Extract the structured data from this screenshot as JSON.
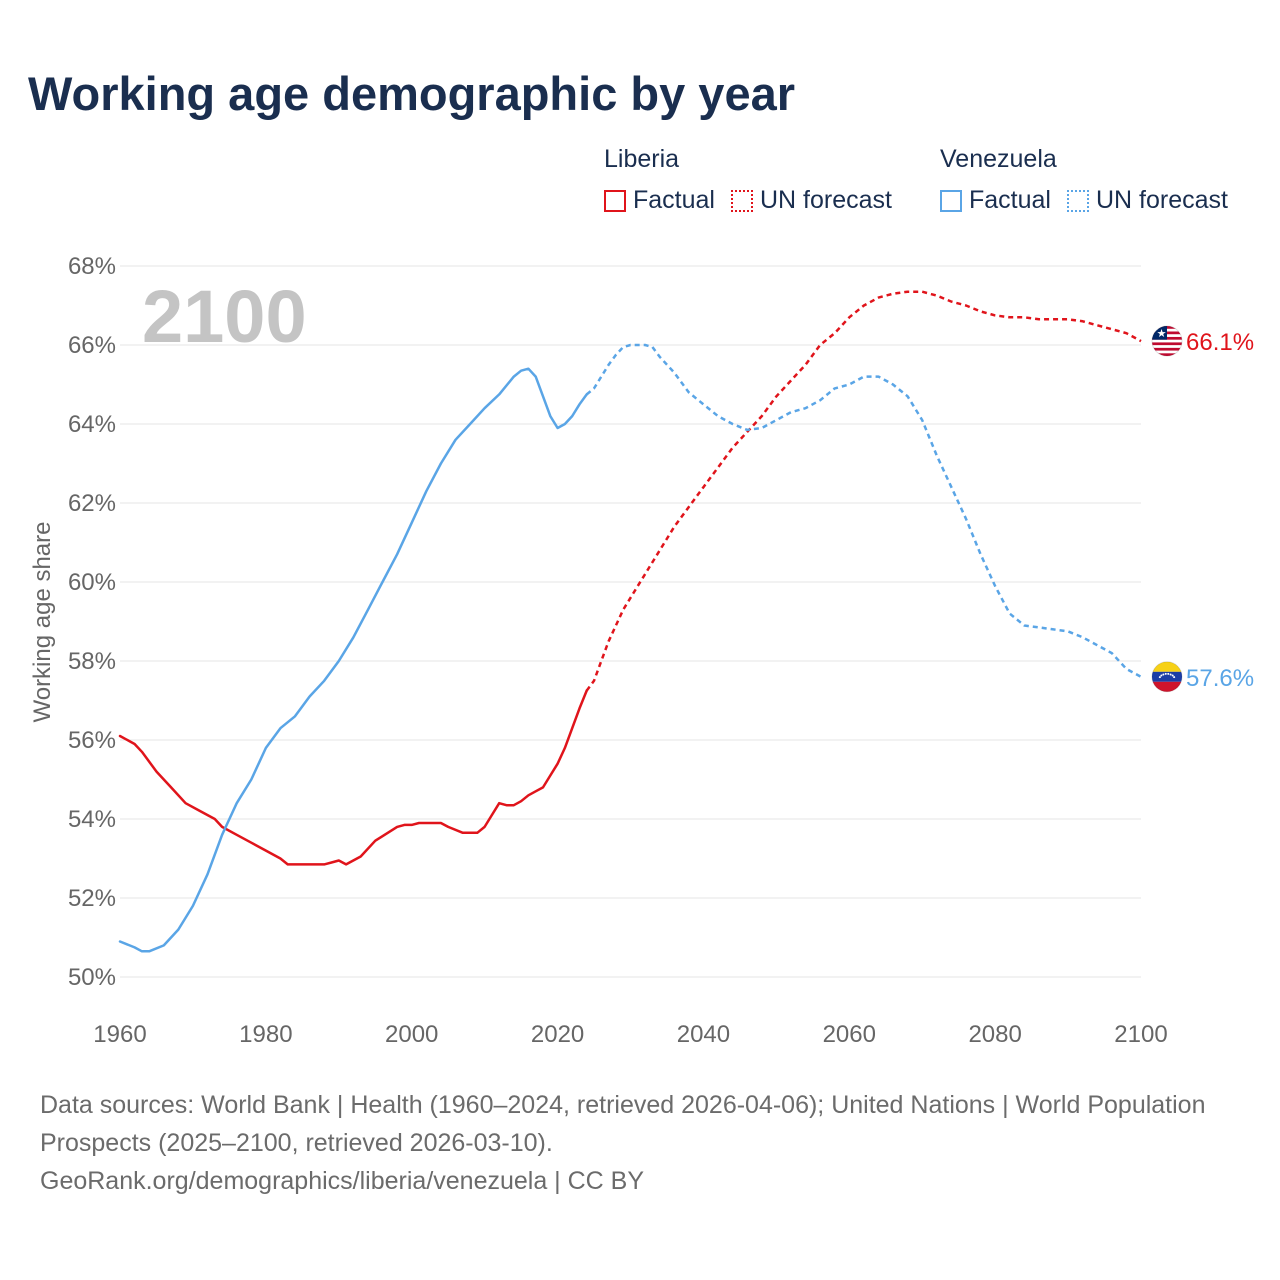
{
  "title": "Working age demographic by year",
  "legend": {
    "groups": [
      {
        "name": "Liberia",
        "factual": "Factual",
        "forecast": "UN forecast"
      },
      {
        "name": "Venezuela",
        "factual": "Factual",
        "forecast": "UN forecast"
      }
    ]
  },
  "footer": {
    "sources": "Data sources: World Bank | Health (1960–2024, retrieved 2026-04-06); United Nations | World Population Prospects (2025–2100, retrieved 2026-03-10).",
    "url": "GeoRank.org/demographics/liberia/venezuela | CC BY"
  },
  "colors": {
    "liberia": "#e0141b",
    "venezuela": "#5aa5e6",
    "title": "#1a2e4f",
    "axis_text": "#666666",
    "grid": "#e6e6e6",
    "year_watermark": "#c4c4c4"
  },
  "chart_data": {
    "type": "line",
    "year_label": "2100",
    "ylabel": "Working age share",
    "xlim": [
      1960,
      2100
    ],
    "ylim": [
      50,
      68
    ],
    "x_ticks": [
      1960,
      1980,
      2000,
      2020,
      2040,
      2060,
      2080,
      2100
    ],
    "y_ticks": [
      50,
      52,
      54,
      56,
      58,
      60,
      62,
      64,
      66,
      68
    ],
    "y_tick_suffix": "%",
    "series": [
      {
        "name": "Liberia",
        "color_key": "liberia",
        "end_label": "66.1%",
        "flag": "liberia",
        "factual": [
          [
            1960,
            56.1
          ],
          [
            1962,
            55.9
          ],
          [
            1963,
            55.7
          ],
          [
            1965,
            55.2
          ],
          [
            1967,
            54.8
          ],
          [
            1969,
            54.4
          ],
          [
            1971,
            54.2
          ],
          [
            1973,
            54.0
          ],
          [
            1974,
            53.8
          ],
          [
            1976,
            53.6
          ],
          [
            1978,
            53.4
          ],
          [
            1980,
            53.2
          ],
          [
            1982,
            53.0
          ],
          [
            1983,
            52.85
          ],
          [
            1985,
            52.85
          ],
          [
            1988,
            52.85
          ],
          [
            1989,
            52.9
          ],
          [
            1990,
            52.95
          ],
          [
            1991,
            52.85
          ],
          [
            1993,
            53.05
          ],
          [
            1995,
            53.45
          ],
          [
            1998,
            53.8
          ],
          [
            1999,
            53.85
          ],
          [
            2000,
            53.85
          ],
          [
            2001,
            53.9
          ],
          [
            2004,
            53.9
          ],
          [
            2005,
            53.8
          ],
          [
            2007,
            53.65
          ],
          [
            2008,
            53.65
          ],
          [
            2009,
            53.65
          ],
          [
            2010,
            53.8
          ],
          [
            2011,
            54.1
          ],
          [
            2012,
            54.4
          ],
          [
            2013,
            54.35
          ],
          [
            2014,
            54.35
          ],
          [
            2015,
            54.45
          ],
          [
            2016,
            54.6
          ],
          [
            2017,
            54.7
          ],
          [
            2018,
            54.8
          ],
          [
            2019,
            55.1
          ],
          [
            2020,
            55.4
          ],
          [
            2021,
            55.8
          ],
          [
            2022,
            56.3
          ],
          [
            2023,
            56.8
          ],
          [
            2024,
            57.25
          ]
        ],
        "forecast": [
          [
            2024,
            57.25
          ],
          [
            2025,
            57.5
          ],
          [
            2026,
            58.0
          ],
          [
            2027,
            58.5
          ],
          [
            2028,
            58.9
          ],
          [
            2029,
            59.3
          ],
          [
            2030,
            59.6
          ],
          [
            2032,
            60.2
          ],
          [
            2034,
            60.8
          ],
          [
            2036,
            61.4
          ],
          [
            2038,
            61.9
          ],
          [
            2040,
            62.4
          ],
          [
            2042,
            62.9
          ],
          [
            2044,
            63.4
          ],
          [
            2046,
            63.8
          ],
          [
            2048,
            64.2
          ],
          [
            2050,
            64.7
          ],
          [
            2052,
            65.1
          ],
          [
            2054,
            65.5
          ],
          [
            2056,
            66.0
          ],
          [
            2058,
            66.3
          ],
          [
            2060,
            66.7
          ],
          [
            2062,
            67.0
          ],
          [
            2064,
            67.2
          ],
          [
            2066,
            67.3
          ],
          [
            2068,
            67.35
          ],
          [
            2070,
            67.35
          ],
          [
            2072,
            67.25
          ],
          [
            2074,
            67.1
          ],
          [
            2076,
            67.0
          ],
          [
            2078,
            66.85
          ],
          [
            2080,
            66.75
          ],
          [
            2082,
            66.7
          ],
          [
            2084,
            66.7
          ],
          [
            2086,
            66.65
          ],
          [
            2088,
            66.65
          ],
          [
            2090,
            66.65
          ],
          [
            2092,
            66.6
          ],
          [
            2094,
            66.5
          ],
          [
            2096,
            66.4
          ],
          [
            2098,
            66.3
          ],
          [
            2100,
            66.1
          ]
        ]
      },
      {
        "name": "Venezuela",
        "color_key": "venezuela",
        "end_label": "57.6%",
        "flag": "venezuela",
        "factual": [
          [
            1960,
            50.9
          ],
          [
            1962,
            50.75
          ],
          [
            1963,
            50.65
          ],
          [
            1964,
            50.65
          ],
          [
            1966,
            50.8
          ],
          [
            1968,
            51.2
          ],
          [
            1970,
            51.8
          ],
          [
            1972,
            52.6
          ],
          [
            1974,
            53.6
          ],
          [
            1975,
            54.0
          ],
          [
            1976,
            54.4
          ],
          [
            1978,
            55.0
          ],
          [
            1980,
            55.8
          ],
          [
            1982,
            56.3
          ],
          [
            1984,
            56.6
          ],
          [
            1986,
            57.1
          ],
          [
            1988,
            57.5
          ],
          [
            1990,
            58.0
          ],
          [
            1992,
            58.6
          ],
          [
            1994,
            59.3
          ],
          [
            1996,
            60.0
          ],
          [
            1998,
            60.7
          ],
          [
            2000,
            61.5
          ],
          [
            2002,
            62.3
          ],
          [
            2004,
            63.0
          ],
          [
            2006,
            63.6
          ],
          [
            2008,
            64.0
          ],
          [
            2010,
            64.4
          ],
          [
            2012,
            64.75
          ],
          [
            2014,
            65.2
          ],
          [
            2015,
            65.35
          ],
          [
            2016,
            65.4
          ],
          [
            2017,
            65.2
          ],
          [
            2018,
            64.7
          ],
          [
            2019,
            64.2
          ],
          [
            2020,
            63.9
          ],
          [
            2021,
            64.0
          ],
          [
            2022,
            64.2
          ],
          [
            2023,
            64.5
          ],
          [
            2024,
            64.75
          ]
        ],
        "forecast": [
          [
            2024,
            64.75
          ],
          [
            2025,
            64.9
          ],
          [
            2026,
            65.2
          ],
          [
            2027,
            65.5
          ],
          [
            2028,
            65.75
          ],
          [
            2029,
            65.95
          ],
          [
            2030,
            66.0
          ],
          [
            2032,
            66.0
          ],
          [
            2033,
            65.95
          ],
          [
            2034,
            65.7
          ],
          [
            2036,
            65.3
          ],
          [
            2038,
            64.8
          ],
          [
            2040,
            64.5
          ],
          [
            2042,
            64.2
          ],
          [
            2044,
            64.0
          ],
          [
            2046,
            63.85
          ],
          [
            2048,
            63.9
          ],
          [
            2050,
            64.1
          ],
          [
            2052,
            64.3
          ],
          [
            2054,
            64.4
          ],
          [
            2056,
            64.6
          ],
          [
            2058,
            64.9
          ],
          [
            2060,
            65.0
          ],
          [
            2062,
            65.2
          ],
          [
            2064,
            65.2
          ],
          [
            2066,
            65.0
          ],
          [
            2068,
            64.7
          ],
          [
            2070,
            64.1
          ],
          [
            2072,
            63.2
          ],
          [
            2074,
            62.4
          ],
          [
            2076,
            61.6
          ],
          [
            2078,
            60.7
          ],
          [
            2080,
            59.9
          ],
          [
            2082,
            59.2
          ],
          [
            2084,
            58.9
          ],
          [
            2086,
            58.85
          ],
          [
            2088,
            58.8
          ],
          [
            2090,
            58.75
          ],
          [
            2092,
            58.6
          ],
          [
            2094,
            58.4
          ],
          [
            2096,
            58.2
          ],
          [
            2098,
            57.8
          ],
          [
            2100,
            57.6
          ]
        ]
      }
    ]
  }
}
